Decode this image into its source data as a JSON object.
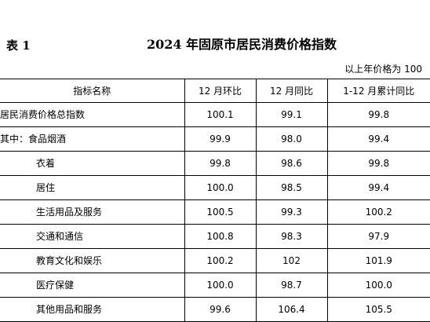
{
  "header": {
    "table_label": "表 1",
    "title": "2024 年固原市居民消费价格指数",
    "unit_note": "以上年价格为 100"
  },
  "table": {
    "columns": [
      "指标名称",
      "12 月环比",
      "12 月同比",
      "1-12 月累计同比"
    ],
    "rows": [
      {
        "name": "居民消费价格总指数",
        "indent": false,
        "mom": "100.1",
        "yoy": "99.1",
        "cum": "99.8"
      },
      {
        "name": "其中：食品烟酒",
        "indent": false,
        "mom": "99.9",
        "yoy": "98.0",
        "cum": "99.4"
      },
      {
        "name": "衣着",
        "indent": true,
        "mom": "99.8",
        "yoy": "98.6",
        "cum": "99.8"
      },
      {
        "name": "居住",
        "indent": true,
        "mom": "100.0",
        "yoy": "98.5",
        "cum": "99.4"
      },
      {
        "name": "生活用品及服务",
        "indent": true,
        "mom": "100.5",
        "yoy": "99.3",
        "cum": "100.2"
      },
      {
        "name": "交通和通信",
        "indent": true,
        "mom": "100.8",
        "yoy": "98.3",
        "cum": "97.9"
      },
      {
        "name": "教育文化和娱乐",
        "indent": true,
        "mom": "100.2",
        "yoy": "102",
        "cum": "101.9"
      },
      {
        "name": "医疗保健",
        "indent": true,
        "mom": "100.0",
        "yoy": "98.7",
        "cum": "100.0"
      },
      {
        "name": "其他用品和服务",
        "indent": true,
        "mom": "99.6",
        "yoy": "106.4",
        "cum": "105.5"
      }
    ]
  }
}
